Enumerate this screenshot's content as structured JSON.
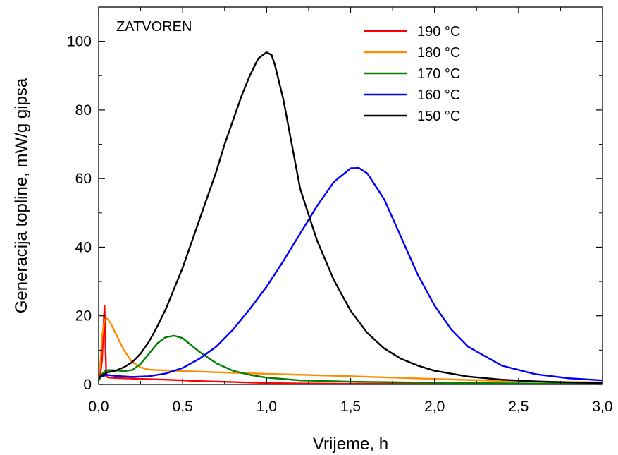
{
  "chart_data": {
    "type": "line",
    "annotation": "ZATVOREN",
    "xlabel": "Vrijeme, h",
    "ylabel": "Generacija topline, mW/g gipsa",
    "xlim": [
      0,
      3.0
    ],
    "ylim": [
      0,
      110
    ],
    "x_ticks": [
      0,
      0.5,
      1.0,
      1.5,
      2.0,
      2.5,
      3.0
    ],
    "x_tick_labels": [
      "0,0",
      "0,5",
      "1,0",
      "1,5",
      "2,0",
      "2,5",
      "3,0"
    ],
    "y_ticks": [
      0,
      20,
      40,
      60,
      80,
      100
    ],
    "y_tick_labels": [
      "0",
      "20",
      "40",
      "60",
      "80",
      "100"
    ],
    "grid": false,
    "legend_position": "top-right",
    "series": [
      {
        "name": "190 °C",
        "color": "#ff0000",
        "x": [
          0,
          0.01,
          0.02,
          0.03,
          0.035,
          0.04,
          0.045,
          0.05,
          0.06,
          0.1,
          0.2,
          0.4,
          0.6,
          0.8,
          1.0,
          1.2,
          1.5,
          2.0,
          2.5,
          3.0
        ],
        "y": [
          2,
          3,
          7,
          18,
          23,
          12,
          3.5,
          2.2,
          2.0,
          1.9,
          1.7,
          1.4,
          1.0,
          0.7,
          0.4,
          0.3,
          0.2,
          0.15,
          0.1,
          0.1
        ]
      },
      {
        "name": "180 °C",
        "color": "#ff8c00",
        "x": [
          0,
          0.01,
          0.02,
          0.035,
          0.05,
          0.07,
          0.1,
          0.15,
          0.2,
          0.25,
          0.3,
          0.5,
          0.8,
          1.0,
          1.5,
          2.0,
          2.5,
          3.0
        ],
        "y": [
          3,
          6,
          14,
          18.8,
          19.2,
          18,
          15,
          10,
          6.5,
          5,
          4.3,
          3.9,
          3.4,
          3.1,
          2.4,
          1.6,
          0.9,
          0.6
        ]
      },
      {
        "name": "170 °C",
        "color": "#008000",
        "x": [
          0,
          0.02,
          0.04,
          0.06,
          0.1,
          0.15,
          0.2,
          0.25,
          0.3,
          0.35,
          0.4,
          0.45,
          0.5,
          0.55,
          0.6,
          0.7,
          0.8,
          0.9,
          1.0,
          1.2,
          1.5,
          2.0,
          2.5,
          3.0
        ],
        "y": [
          1,
          3,
          4,
          4.2,
          4.1,
          3.9,
          4.2,
          6,
          9,
          12,
          13.8,
          14.2,
          13.5,
          11.5,
          9.5,
          6.2,
          4,
          2.8,
          2,
          1.2,
          0.8,
          0.5,
          0.3,
          0.2
        ]
      },
      {
        "name": "160 °C",
        "color": "#0000ff",
        "x": [
          0,
          0.05,
          0.1,
          0.2,
          0.3,
          0.4,
          0.5,
          0.6,
          0.7,
          0.8,
          0.9,
          1.0,
          1.1,
          1.2,
          1.3,
          1.4,
          1.5,
          1.55,
          1.6,
          1.7,
          1.8,
          1.9,
          2.0,
          2.1,
          2.2,
          2.4,
          2.6,
          2.8,
          3.0
        ],
        "y": [
          2,
          2.8,
          2.5,
          2.2,
          2.4,
          3.2,
          4.8,
          7.5,
          11,
          16,
          22,
          28.5,
          36,
          44,
          52,
          59,
          63,
          63.1,
          61.5,
          54,
          43,
          32,
          23,
          16,
          11,
          5.5,
          3,
          1.8,
          1.2
        ]
      },
      {
        "name": "150 °C",
        "color": "#000000",
        "x": [
          0,
          0.05,
          0.1,
          0.15,
          0.2,
          0.25,
          0.3,
          0.35,
          0.4,
          0.45,
          0.5,
          0.55,
          0.6,
          0.65,
          0.7,
          0.75,
          0.8,
          0.85,
          0.9,
          0.95,
          1.0,
          1.03,
          1.05,
          1.1,
          1.15,
          1.2,
          1.3,
          1.4,
          1.5,
          1.6,
          1.7,
          1.8,
          1.9,
          2.0,
          2.2,
          2.4,
          2.6,
          2.8,
          3.0
        ],
        "y": [
          2,
          3.5,
          4,
          5,
          6.5,
          9,
          12.5,
          17,
          22,
          28,
          34,
          41,
          48,
          55,
          62,
          70,
          77,
          84,
          90,
          95,
          96.8,
          96,
          93,
          83,
          70,
          57,
          42,
          30.5,
          21.5,
          15,
          10.5,
          7.5,
          5.5,
          4,
          2.3,
          1.4,
          0.9,
          0.6,
          0.4
        ]
      }
    ]
  }
}
